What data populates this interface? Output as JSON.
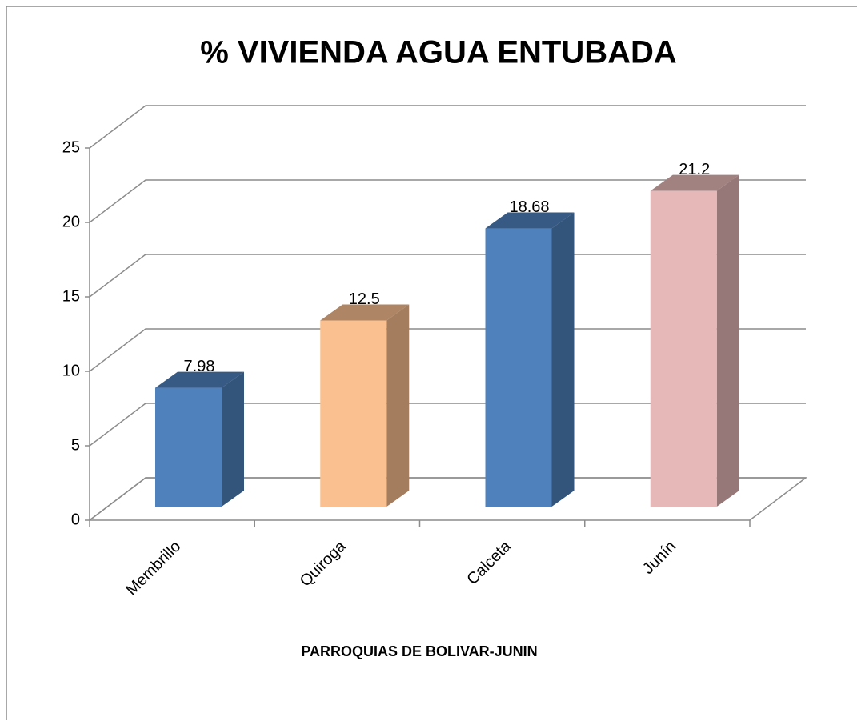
{
  "chart_data": {
    "type": "bar3d",
    "title": "% VIVIENDA AGUA ENTUBADA",
    "x_label": "PARROQUIAS DE BOLIVAR-JUNIN",
    "categories": [
      "Membrillo",
      "Quiroga",
      "Calceta",
      "Junín"
    ],
    "values": [
      7.98,
      12.5,
      18.68,
      21.2
    ],
    "colors": [
      "#4f81bd",
      "#fac090",
      "#4f81bd",
      "#e6b9b8"
    ],
    "ylim": [
      0,
      25
    ],
    "yticks": [
      0,
      5,
      10,
      15,
      20,
      25
    ],
    "grid": true
  }
}
